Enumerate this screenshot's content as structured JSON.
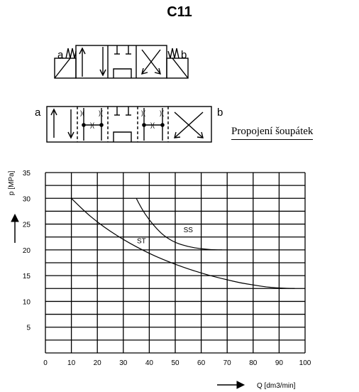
{
  "header": {
    "title": "C11"
  },
  "valve_top": {
    "label_left": "a",
    "label_right": "b"
  },
  "valve_bottom": {
    "label_left": "a",
    "label_right": "b"
  },
  "caption": "Propojení šoupátek",
  "chart_data": {
    "type": "line",
    "xlabel": "Q [dm3/min]",
    "ylabel": "p [MPa]",
    "xlim": [
      0,
      100
    ],
    "ylim": [
      0,
      35
    ],
    "x_ticks": [
      "0",
      "10",
      "20",
      "30",
      "40",
      "50",
      "60",
      "70",
      "80",
      "90",
      "100"
    ],
    "y_ticks": [
      "35",
      "30",
      "25",
      "20",
      "15",
      "10",
      "5"
    ],
    "grid": true,
    "series": [
      {
        "name": "ST",
        "points": [
          [
            10,
            30
          ],
          [
            15,
            27.5
          ],
          [
            20,
            25.4
          ],
          [
            25,
            23.6
          ],
          [
            30,
            22
          ],
          [
            35,
            20.6
          ],
          [
            40,
            19.3
          ],
          [
            45,
            18.2
          ],
          [
            50,
            17.2
          ],
          [
            55,
            16.3
          ],
          [
            60,
            15.5
          ],
          [
            65,
            14.8
          ],
          [
            70,
            14.2
          ],
          [
            75,
            13.6
          ],
          [
            80,
            13.2
          ],
          [
            85,
            12.8
          ],
          [
            90,
            12.6
          ],
          [
            96,
            12.5
          ]
        ],
        "label_at": [
          37,
          21.3
        ]
      },
      {
        "name": "SS",
        "points": [
          [
            35,
            30
          ],
          [
            37,
            28
          ],
          [
            40,
            25.8
          ],
          [
            43,
            24
          ],
          [
            46,
            22.6
          ],
          [
            50,
            21.4
          ],
          [
            55,
            20.6
          ],
          [
            60,
            20.2
          ],
          [
            65,
            20
          ],
          [
            68,
            20
          ]
        ],
        "label_at": [
          55,
          23.4
        ]
      }
    ]
  }
}
